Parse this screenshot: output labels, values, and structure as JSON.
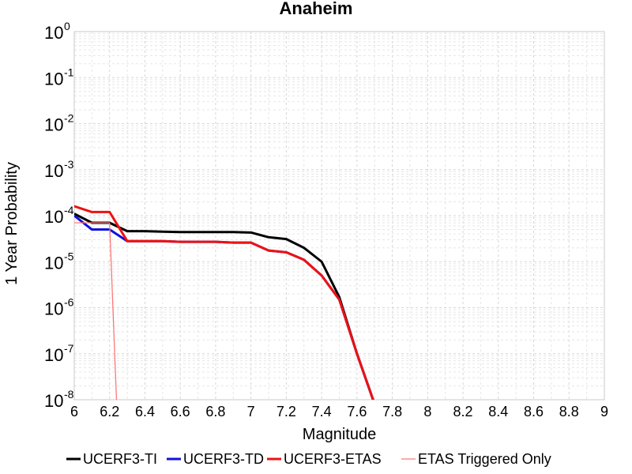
{
  "chart_data": {
    "type": "line",
    "title": "Anaheim",
    "xlabel": "Magnitude",
    "ylabel": "1 Year Probability",
    "xlim": [
      6,
      9
    ],
    "ylim": [
      1e-08,
      1
    ],
    "yscale": "log",
    "grid": true,
    "legend_position": "bottom",
    "x_ticks": [
      "6",
      "6.2",
      "6.4",
      "6.6",
      "6.8",
      "7",
      "7.2",
      "7.4",
      "7.6",
      "7.8",
      "8",
      "8.2",
      "8.4",
      "8.6",
      "8.8",
      "9"
    ],
    "y_ticks": [
      {
        "base": "10",
        "exp": "0",
        "value": 1
      },
      {
        "base": "10",
        "exp": "-1",
        "value": 0.1
      },
      {
        "base": "10",
        "exp": "-2",
        "value": 0.01
      },
      {
        "base": "10",
        "exp": "-3",
        "value": 0.001
      },
      {
        "base": "10",
        "exp": "-4",
        "value": 0.0001
      },
      {
        "base": "10",
        "exp": "-5",
        "value": 1e-05
      },
      {
        "base": "10",
        "exp": "-6",
        "value": 1e-06
      },
      {
        "base": "10",
        "exp": "-7",
        "value": 1e-07
      },
      {
        "base": "10",
        "exp": "-8",
        "value": 1e-08
      }
    ],
    "series": [
      {
        "name": "UCERF3-TI",
        "color": "#000000",
        "width": 3,
        "x": [
          6.0,
          6.1,
          6.2,
          6.3,
          6.4,
          6.5,
          6.6,
          6.7,
          6.8,
          6.9,
          7.0,
          7.1,
          7.2,
          7.3,
          7.4,
          7.5,
          7.6,
          7.7
        ],
        "y": [
          0.00011,
          7e-05,
          7e-05,
          4.6e-05,
          4.6e-05,
          4.5e-05,
          4.4e-05,
          4.4e-05,
          4.4e-05,
          4.4e-05,
          4.3e-05,
          3.4e-05,
          3.1e-05,
          2e-05,
          1e-05,
          1.7e-06,
          1e-07,
          8e-09
        ]
      },
      {
        "name": "UCERF3-TD",
        "color": "#1010dd",
        "width": 3,
        "x": [
          6.0,
          6.1,
          6.2,
          6.3,
          6.4,
          6.5,
          6.6,
          6.7,
          6.8,
          6.9,
          7.0,
          7.1,
          7.2,
          7.3,
          7.4,
          7.5,
          7.6,
          7.7
        ],
        "y": [
          0.0001,
          5e-05,
          5e-05,
          2.8e-05,
          2.8e-05,
          2.8e-05,
          2.7e-05,
          2.7e-05,
          2.7e-05,
          2.6e-05,
          2.6e-05,
          1.75e-05,
          1.6e-05,
          1.1e-05,
          5e-06,
          1.5e-06,
          1e-07,
          8e-09
        ]
      },
      {
        "name": "UCERF3-ETAS",
        "color": "#ee1111",
        "width": 3,
        "x": [
          6.0,
          6.1,
          6.2,
          6.3,
          6.4,
          6.5,
          6.6,
          6.7,
          6.8,
          6.9,
          7.0,
          7.1,
          7.2,
          7.3,
          7.4,
          7.5,
          7.6,
          7.7
        ],
        "y": [
          0.00016,
          0.00012,
          0.00012,
          2.8e-05,
          2.8e-05,
          2.8e-05,
          2.7e-05,
          2.7e-05,
          2.7e-05,
          2.6e-05,
          2.6e-05,
          1.75e-05,
          1.6e-05,
          1.1e-05,
          5e-06,
          1.5e-06,
          1e-07,
          8e-09
        ]
      },
      {
        "name": "ETAS Triggered Only",
        "color": "#ff7777",
        "width": 1.3,
        "x": [
          6.0,
          6.1,
          6.2,
          6.24
        ],
        "y": [
          7e-05,
          7e-05,
          7e-05,
          8e-09
        ]
      }
    ]
  }
}
